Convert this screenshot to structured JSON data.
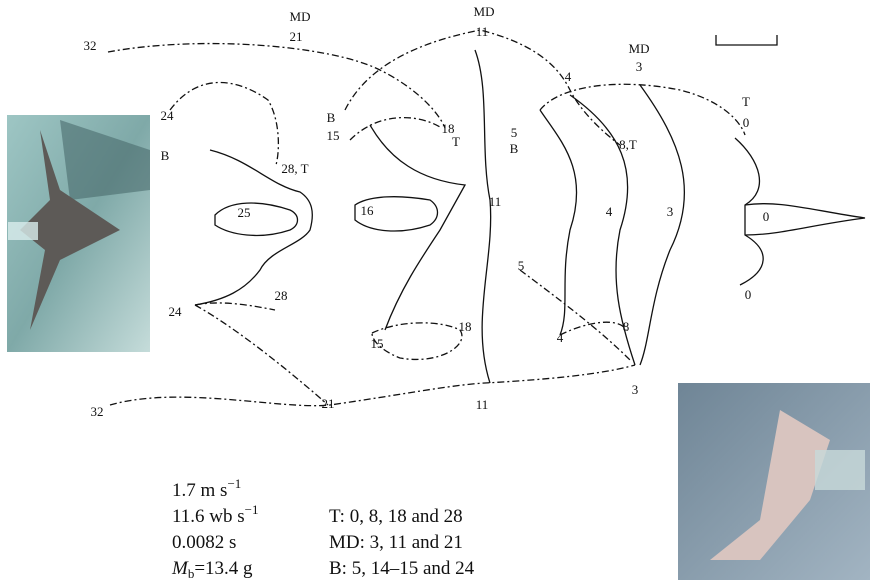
{
  "figure": {
    "labels": [
      "32",
      "MD",
      "21",
      "MD",
      "11",
      "MD",
      "3",
      "T",
      "0",
      "24",
      "B",
      "28, T",
      "25",
      "B",
      "15",
      "18",
      "T",
      "16",
      "11",
      "4",
      "5",
      "B",
      "8,T",
      "4",
      "3",
      "0",
      "24",
      "28",
      "15",
      "18",
      "5",
      "4",
      "8",
      "0",
      "32",
      "21",
      "11",
      "3"
    ],
    "stats": [
      {
        "text": "1.7 m s",
        "sup": "−1"
      },
      {
        "text": "11.6 wb s",
        "sup": "−1"
      },
      {
        "text": "0.0082 s"
      },
      {
        "symbol": "M",
        "sub": "b",
        "text": "=13.4 g"
      }
    ],
    "key": [
      "T: 0, 8, 18 and 28",
      "MD: 3, 11 and 21",
      "B: 5, 14–15 and 24"
    ]
  }
}
